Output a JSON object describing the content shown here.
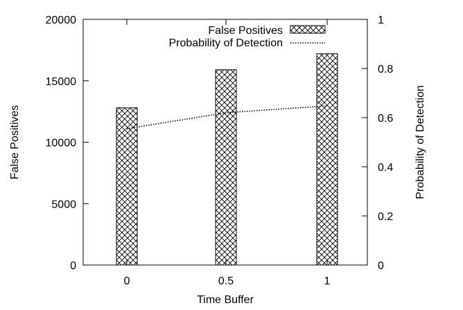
{
  "chart_data": {
    "type": "bar",
    "categories": [
      "0",
      "0.5",
      "1"
    ],
    "series": [
      {
        "name": "False Positives",
        "type": "bar",
        "axis": "left",
        "values": [
          12800,
          15900,
          17200
        ],
        "pattern": "crosshatch"
      },
      {
        "name": "Probability of Detection",
        "type": "line",
        "axis": "right",
        "values": [
          0.555,
          0.62,
          0.648
        ],
        "style": "dotted"
      }
    ],
    "xlabel": "Time Buffer",
    "ylabel": "False Positives",
    "y2label": "Probability of Detection",
    "ylim": [
      0,
      20000
    ],
    "y2lim": [
      0,
      1
    ],
    "yticks": [
      "0",
      "5000",
      "10000",
      "15000",
      "20000"
    ],
    "y2ticks": [
      "0",
      "0.2",
      "0.4",
      "0.6",
      "0.8",
      "1"
    ],
    "grid": false,
    "legend": "top-right",
    "colors": {
      "ink": "#000000",
      "background": "#ffffff"
    }
  }
}
